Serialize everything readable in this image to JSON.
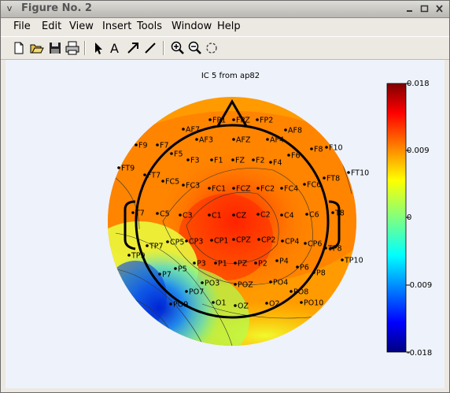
{
  "window": {
    "title": "Figure No. 2",
    "sys_icon": "v",
    "buttons": [
      "minimize-icon",
      "maximize-icon",
      "close-icon"
    ]
  },
  "menu": {
    "items": [
      {
        "label": "File"
      },
      {
        "label": "Edit"
      },
      {
        "label": "View"
      },
      {
        "label": "Insert"
      },
      {
        "label": "Tools"
      },
      {
        "label": "Window"
      },
      {
        "label": "Help"
      }
    ]
  },
  "toolbar": {
    "buttons": [
      "new-figure-icon",
      "open-file-icon",
      "save-icon",
      "print-icon",
      "select-arrow-icon",
      "insert-text-icon",
      "insert-arrow-icon",
      "insert-line-icon",
      "zoom-in-icon",
      "zoom-out-icon",
      "rotate-icon"
    ]
  },
  "plot": {
    "title": "IC 5 from ap82",
    "colorbar": {
      "ticks": [
        "0.018",
        "0.009",
        "0",
        "-0.009",
        "-0.018"
      ],
      "values": [
        0.018,
        0.009,
        0,
        -0.009,
        -0.018
      ],
      "range": [
        -0.018,
        0.018
      ],
      "colormap": "jet"
    },
    "electrodes": [
      "FP1",
      "FPZ",
      "FP2",
      "AF7",
      "AF3",
      "AFZ",
      "AF4",
      "AF8",
      "F9",
      "F7",
      "F5",
      "F3",
      "F1",
      "FZ",
      "F2",
      "F4",
      "F6",
      "F8",
      "F10",
      "FT9",
      "FT7",
      "FC5",
      "FC3",
      "FC1",
      "FCZ",
      "FC2",
      "FC4",
      "FC6",
      "FT8",
      "FT10",
      "T7",
      "C5",
      "C3",
      "C1",
      "CZ",
      "C2",
      "C4",
      "C6",
      "T8",
      "TP7",
      "CP5",
      "CP3",
      "CP1",
      "CPZ",
      "CP2",
      "CP4",
      "CP6",
      "TP8",
      "TP9",
      "P7",
      "P5",
      "P3",
      "P1",
      "PZ",
      "P2",
      "P4",
      "P6",
      "P8",
      "TP10",
      "PO7",
      "PO3",
      "POZ",
      "PO4",
      "PO8",
      "PO9",
      "O1",
      "OZ",
      "O2",
      "PO10"
    ],
    "colors": {
      "max": "#800000",
      "zero": "#80ff80",
      "min": "#000080",
      "background": "#eef2fb"
    }
  }
}
